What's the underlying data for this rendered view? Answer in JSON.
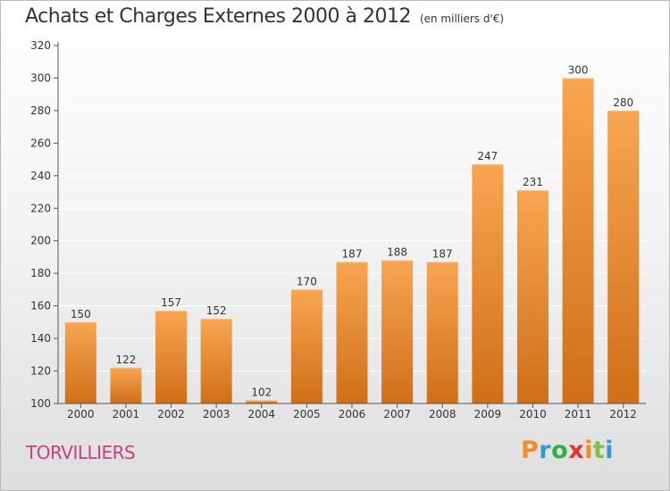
{
  "header": {
    "title": "Achats et Charges Externes 2000 à 2012",
    "unit": "(en milliers d'€)"
  },
  "footer": {
    "location": "TORVILLIERS",
    "brand": "Proxiti",
    "brand_colors": [
      "#f28c28",
      "#2e9ad6",
      "#2bb24c",
      "#e8322d",
      "#f28c28",
      "#7bc142",
      "#2e9ad6"
    ]
  },
  "colors": {
    "bar_top": "#f8a552",
    "bar_bottom": "#cf6f17",
    "grid": "#ffffff",
    "axis": "#555555",
    "text": "#333333"
  },
  "chart_data": {
    "type": "bar",
    "categories": [
      "2000",
      "2001",
      "2002",
      "2003",
      "2004",
      "2005",
      "2006",
      "2007",
      "2008",
      "2009",
      "2010",
      "2011",
      "2012"
    ],
    "values": [
      150,
      122,
      157,
      152,
      102,
      170,
      187,
      188,
      187,
      247,
      231,
      300,
      280
    ],
    "ylim": [
      100,
      320
    ],
    "yticks": [
      100,
      120,
      140,
      160,
      180,
      200,
      220,
      240,
      260,
      280,
      300,
      320
    ],
    "grid": true,
    "data_labels": true
  }
}
